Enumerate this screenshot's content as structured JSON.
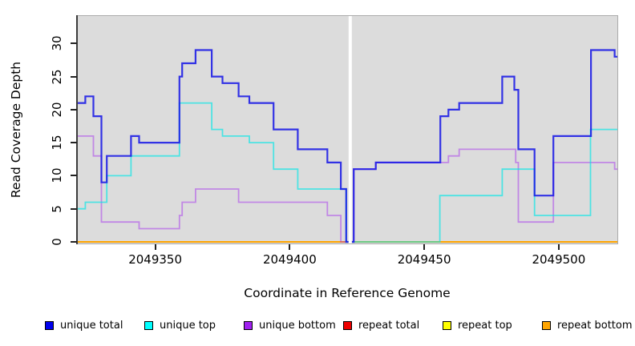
{
  "chart_data": {
    "type": "step-line",
    "title": "",
    "xlabel": "Coordinate in Reference Genome",
    "ylabel": "Read Coverage Depth",
    "xlim": [
      2049321.2,
      2049521.8
    ],
    "ylim": [
      -0.24,
      34.15
    ],
    "grid": false,
    "panel_bg": "#DCDCDC",
    "gap_band": {
      "from": 2049421.9,
      "to": 2049423.1,
      "color": "#FFFFFF"
    },
    "x_ticks": [
      {
        "value": 2049350,
        "label": "2049350"
      },
      {
        "value": 2049400,
        "label": "2049400"
      },
      {
        "value": 2049450,
        "label": "2049450"
      },
      {
        "value": 2049500,
        "label": "2049500"
      }
    ],
    "y_ticks": [
      {
        "value": 0,
        "label": "0"
      },
      {
        "value": 5,
        "label": "5"
      },
      {
        "value": 10,
        "label": "10"
      },
      {
        "value": 15,
        "label": "15"
      },
      {
        "value": 20,
        "label": "20"
      },
      {
        "value": 25,
        "label": "25"
      },
      {
        "value": 30,
        "label": "30"
      }
    ],
    "series": [
      {
        "key": "repeat-total",
        "name": "repeat total",
        "color": "#DD1111",
        "opacity": 1,
        "width": 2,
        "segments": [
          [
            [
              2049321.2,
              0
            ],
            [
              2049421.9,
              0
            ]
          ],
          [
            [
              2049423.1,
              0
            ],
            [
              2049521.8,
              0
            ]
          ]
        ]
      },
      {
        "key": "repeat-top",
        "name": "repeat top",
        "color": "#FFFF00",
        "opacity": 1,
        "width": 2,
        "segments": [
          [
            [
              2049321.2,
              0
            ],
            [
              2049421.9,
              0
            ]
          ],
          [
            [
              2049423.1,
              0
            ],
            [
              2049521.8,
              0
            ]
          ]
        ]
      },
      {
        "key": "repeat-bottom",
        "name": "repeat bottom",
        "color": "#FFA500",
        "opacity": 1,
        "width": 2,
        "segments": [
          [
            [
              2049321.2,
              0
            ],
            [
              2049421.9,
              0
            ]
          ],
          [
            [
              2049423.1,
              0
            ],
            [
              2049521.8,
              0
            ]
          ]
        ]
      },
      {
        "key": "unique-bottom",
        "name": "unique bottom",
        "color": "#A020F0",
        "opacity": 0.45,
        "width": 1.8,
        "segments": [
          [
            [
              2049321.2,
              16
            ],
            [
              2049327,
              13
            ],
            [
              2049330,
              3
            ],
            [
              2049344,
              2
            ],
            [
              2049359,
              4
            ],
            [
              2049360,
              6
            ],
            [
              2049365,
              8
            ],
            [
              2049381,
              6
            ],
            [
              2049414,
              4
            ],
            [
              2049419,
              0
            ],
            [
              2049421.9,
              0
            ]
          ],
          [
            [
              2049423.1,
              0
            ],
            [
              2049423.8,
              11
            ],
            [
              2049432,
              12
            ],
            [
              2049459,
              13
            ],
            [
              2049463,
              14
            ],
            [
              2049484,
              12
            ],
            [
              2049485,
              3
            ],
            [
              2049498,
              12
            ],
            [
              2049520.8,
              11
            ],
            [
              2049521.8,
              11
            ]
          ]
        ]
      },
      {
        "key": "unique-top",
        "name": "unique top",
        "color": "#00E6E6",
        "opacity": 0.65,
        "width": 1.8,
        "segments": [
          [
            [
              2049321.2,
              5
            ],
            [
              2049324,
              6
            ],
            [
              2049332,
              10
            ],
            [
              2049341,
              13
            ],
            [
              2049359,
              21
            ],
            [
              2049371,
              17
            ],
            [
              2049375,
              16
            ],
            [
              2049385,
              15
            ],
            [
              2049394,
              11
            ],
            [
              2049403,
              8
            ],
            [
              2049421,
              0
            ],
            [
              2049421.9,
              0
            ]
          ],
          [
            [
              2049423.1,
              0
            ],
            [
              2049455.8,
              7
            ],
            [
              2049479,
              11
            ],
            [
              2049491,
              4
            ],
            [
              2049511.8,
              17
            ],
            [
              2049521.8,
              17
            ]
          ]
        ]
      },
      {
        "key": "unique-total",
        "name": "unique total",
        "color": "#1414E6",
        "opacity": 0.85,
        "width": 2.2,
        "segments": [
          [
            [
              2049321.2,
              21
            ],
            [
              2049324,
              22
            ],
            [
              2049327,
              19
            ],
            [
              2049330,
              9
            ],
            [
              2049332,
              13
            ],
            [
              2049341,
              16
            ],
            [
              2049344,
              15
            ],
            [
              2049359,
              25
            ],
            [
              2049360,
              27
            ],
            [
              2049365,
              29
            ],
            [
              2049371,
              25
            ],
            [
              2049375,
              24
            ],
            [
              2049381,
              22
            ],
            [
              2049385,
              21
            ],
            [
              2049394,
              17
            ],
            [
              2049403,
              14
            ],
            [
              2049414,
              12
            ],
            [
              2049419,
              8
            ],
            [
              2049421,
              0
            ],
            [
              2049421.9,
              0
            ]
          ],
          [
            [
              2049423.1,
              0
            ],
            [
              2049423.8,
              11
            ],
            [
              2049432,
              12
            ],
            [
              2049456,
              19
            ],
            [
              2049459,
              20
            ],
            [
              2049463,
              21
            ],
            [
              2049479,
              25
            ],
            [
              2049483.5,
              23
            ],
            [
              2049485,
              14
            ],
            [
              2049491,
              7
            ],
            [
              2049498,
              16
            ],
            [
              2049512,
              29
            ],
            [
              2049520.8,
              28
            ],
            [
              2049521.8,
              28
            ]
          ]
        ]
      }
    ]
  },
  "legend": {
    "items": [
      {
        "label": "unique total",
        "color": "#0000EE"
      },
      {
        "label": "unique top",
        "color": "#00FFFF"
      },
      {
        "label": "unique bottom",
        "color": "#A020F0"
      },
      {
        "label": "repeat total",
        "color": "#EE0000"
      },
      {
        "label": "repeat top",
        "color": "#FFFF00"
      },
      {
        "label": "repeat bottom",
        "color": "#FFA500"
      }
    ]
  }
}
